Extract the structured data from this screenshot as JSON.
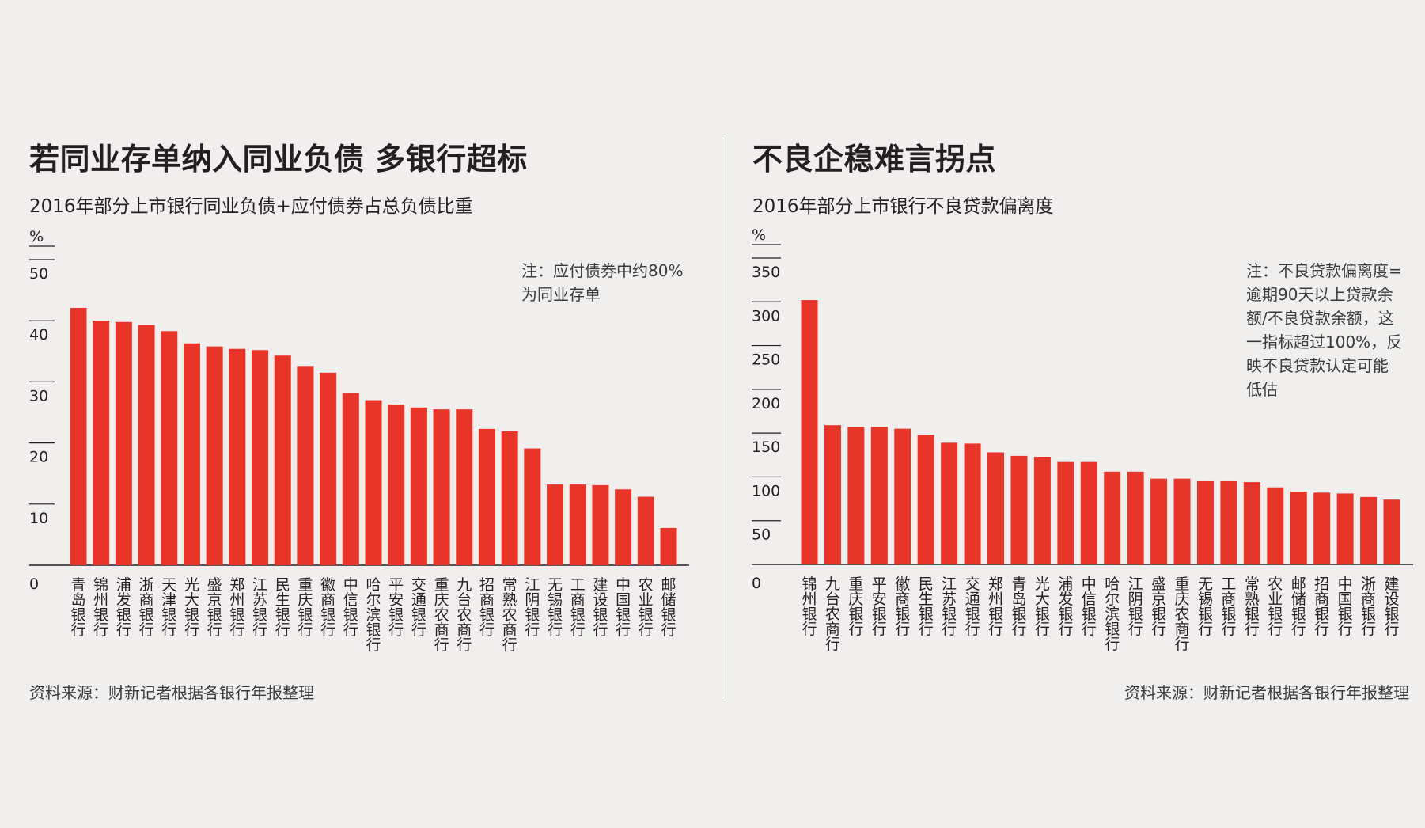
{
  "colors": {
    "bar": "#e8352a",
    "axis": "#231f20",
    "background": "#f0efee"
  },
  "left": {
    "title": "若同业存单纳入同业负债 多银行超标",
    "subtitle": "2016年部分上市银行同业负债+应付债券占总负债比重",
    "note": [
      "注：应付债券中约80%",
      "为同业存单"
    ],
    "source": "资料来源：财新记者根据各银行年报整理"
  },
  "right": {
    "title": "不良企稳难言拐点",
    "subtitle": "2016年部分上市银行不良贷款偏离度",
    "note": [
      "注：不良贷款偏离度=",
      "逾期90天以上贷款余",
      "额/不良贷款余额，这",
      "一指标超过100%，反",
      "映不良贷款认定可能",
      "低估"
    ],
    "source": "资料来源：财新记者根据各银行年报整理"
  },
  "chart_data": [
    {
      "type": "bar",
      "title": "若同业存单纳入同业负债 多银行超标",
      "subtitle": "2016年部分上市银行同业负债+应付债券占总负债比重",
      "ylabel": "%",
      "ylim": [
        0,
        50
      ],
      "yticks": [
        0,
        10,
        20,
        30,
        40,
        50
      ],
      "categories": [
        "青岛银行",
        "锦州银行",
        "浦发银行",
        "浙商银行",
        "天津银行",
        "光大银行",
        "盛京银行",
        "郑州银行",
        "江苏银行",
        "民生银行",
        "重庆银行",
        "徽商银行",
        "中信银行",
        "哈尔滨银行",
        "平安银行",
        "交通银行",
        "重庆农商行",
        "九台农商行",
        "招商银行",
        "常熟农商行",
        "江阴银行",
        "无锡银行",
        "工商银行",
        "建设银行",
        "中国银行",
        "农业银行",
        "邮储银行"
      ],
      "values": [
        42.1,
        40.0,
        39.8,
        39.3,
        38.3,
        36.3,
        35.8,
        35.4,
        35.2,
        34.3,
        32.6,
        31.5,
        28.2,
        27.0,
        26.3,
        25.8,
        25.5,
        25.5,
        22.3,
        21.9,
        19.1,
        13.2,
        13.2,
        13.1,
        12.4,
        11.2,
        6.1
      ]
    },
    {
      "type": "bar",
      "title": "不良企稳难言拐点",
      "subtitle": "2016年部分上市银行不良贷款偏离度",
      "ylabel": "%",
      "ylim": [
        0,
        350
      ],
      "yticks": [
        0,
        50,
        100,
        150,
        200,
        250,
        300,
        350
      ],
      "categories": [
        "锦州银行",
        "九台农商行",
        "重庆银行",
        "平安银行",
        "徽商银行",
        "民生银行",
        "江苏银行",
        "交通银行",
        "郑州银行",
        "青岛银行",
        "光大银行",
        "浦发银行",
        "中信银行",
        "哈尔滨银行",
        "江阴银行",
        "盛京银行",
        "重庆农商行",
        "无锡银行",
        "工商银行",
        "常熟银行",
        "农业银行",
        "邮储银行",
        "招商银行",
        "中国银行",
        "浙商银行",
        "建设银行"
      ],
      "values": [
        302,
        159,
        157,
        157,
        155,
        148,
        139,
        138,
        128,
        124,
        123,
        117,
        117,
        106,
        106,
        98,
        98,
        95,
        95,
        94,
        88,
        83,
        82,
        81,
        77,
        74
      ]
    }
  ]
}
